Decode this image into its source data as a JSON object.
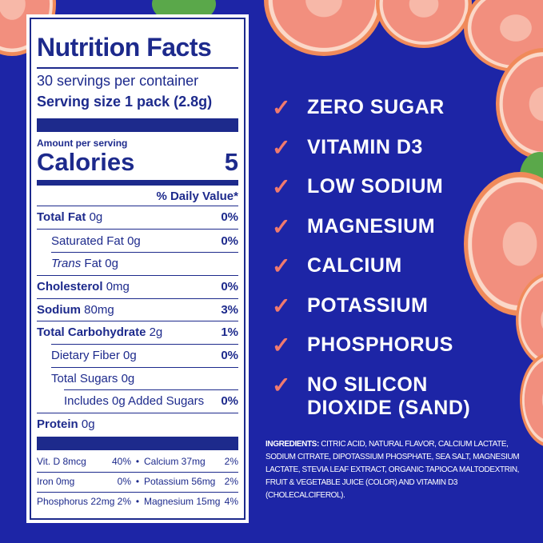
{
  "label": {
    "title": "Nutrition Facts",
    "servings": "30 servings per container",
    "serving_size": "Serving size 1 pack (2.8g)",
    "amount_per": "Amount per serving",
    "calories_label": "Calories",
    "calories_value": "5",
    "dv_header": "% Daily Value*",
    "rows": [
      {
        "name": "Total Fat",
        "amount": "0g",
        "dv": "0%"
      },
      {
        "name": "Saturated Fat",
        "amount": "0g",
        "dv": "0%"
      },
      {
        "name": "Trans",
        "name2": "Fat",
        "amount": "0g",
        "dv": ""
      },
      {
        "name": "Cholesterol",
        "amount": "0mg",
        "dv": "0%"
      },
      {
        "name": "Sodium",
        "amount": "80mg",
        "dv": "3%"
      },
      {
        "name": "Total Carbohydrate",
        "amount": "2g",
        "dv": "1%"
      },
      {
        "name": "Dietary Fiber",
        "amount": "0g",
        "dv": "0%"
      },
      {
        "name": "Total Sugars",
        "amount": "0g",
        "dv": ""
      },
      {
        "name": "Includes 0g Added Sugars",
        "amount": "",
        "dv": "0%"
      },
      {
        "name": "Protein",
        "amount": "0g",
        "dv": ""
      }
    ],
    "vitamins": [
      {
        "a": "Vit. D 8mcg",
        "adv": "40%",
        "b": "Calcium 37mg",
        "bdv": "2%"
      },
      {
        "a": "Iron 0mg",
        "adv": "0%",
        "b": "Potassium 56mg",
        "bdv": "2%"
      },
      {
        "a": "Phosphorus 22mg",
        "adv": "2%",
        "b": "Magnesium 15mg",
        "bdv": "4%"
      }
    ],
    "bullet": "•"
  },
  "claims": [
    "ZERO SUGAR",
    "VITAMIN D3",
    "LOW SODIUM",
    "MAGNESIUM",
    "CALCIUM",
    "POTASSIUM",
    "PHOSPHORUS",
    "NO SILICON DIOXIDE (SAND)"
  ],
  "check_icon": "✓",
  "ingredients": {
    "label": "INGREDIENTS:",
    "text": " CITRIC ACID, NATURAL FLAVOR, CALCIUM LACTATE, SODIUM CITRATE, DIPOTASSIUM PHOSPHATE, SEA SALT, MAGNESIUM LACTATE, STEVIA LEAF EXTRACT, ORGANIC TAPIOCA MALTODEXTRIN, FRUIT & VEGETABLE JUICE (COLOR) AND VITAMIN D3 (CHOLECALCIFEROL)."
  },
  "colors": {
    "background": "#1d25a6",
    "label_text": "#1d2a8c",
    "check": "#f07a6e"
  }
}
